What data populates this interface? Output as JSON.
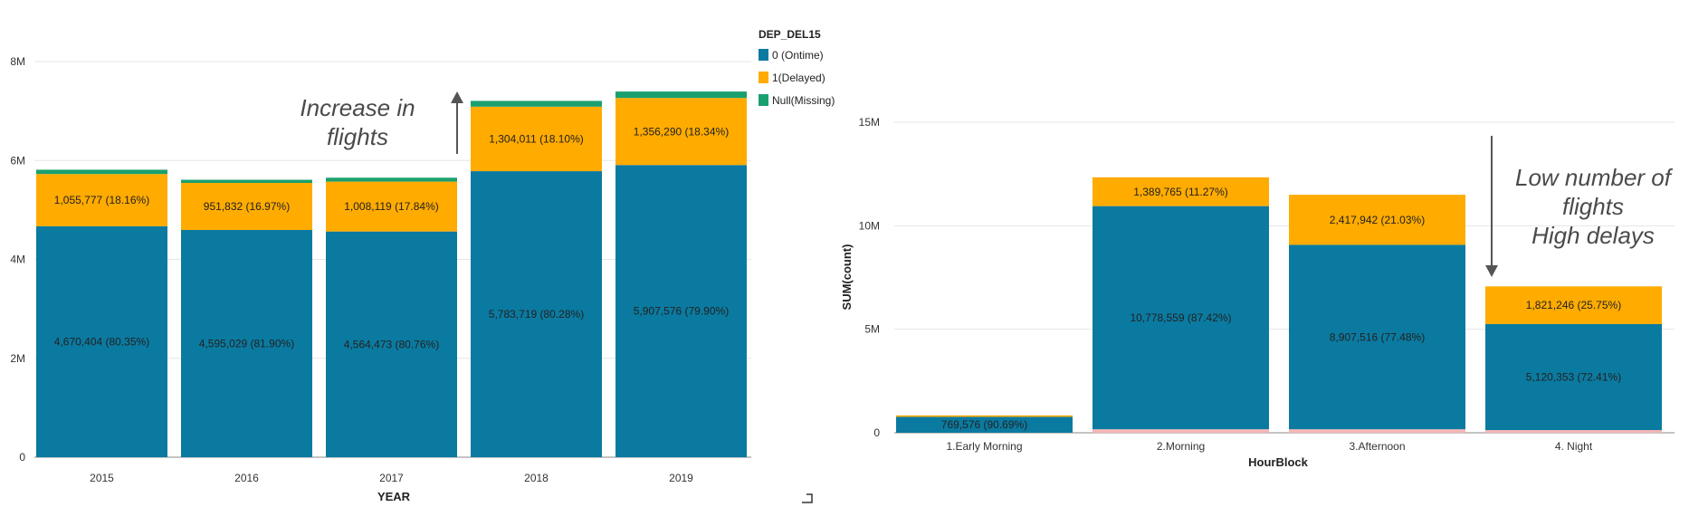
{
  "chart_data": [
    {
      "type": "bar",
      "stacked": true,
      "xlabel": "YEAR",
      "ylabel": "",
      "ylim": [
        0,
        8000000
      ],
      "yticks": [
        "0",
        "2M",
        "4M",
        "6M",
        "8M"
      ],
      "ytick_values": [
        0,
        2000000,
        4000000,
        6000000,
        8000000
      ],
      "grid": true,
      "legend_title": "DEP_DEL15",
      "legend_position": "top-right",
      "categories": [
        "2015",
        "2016",
        "2017",
        "2018",
        "2019"
      ],
      "series": [
        {
          "name": "0 (Ontime)",
          "color": "#0b7aa0",
          "values": [
            4670404,
            4595029,
            4564473,
            5783719,
            5907576
          ],
          "labels": [
            "4,670,404 (80.35%)",
            "4,595,029 (81.90%)",
            "4,564,473 (80.76%)",
            "5,783,719 (80.28%)",
            "5,907,576 (79.90%)"
          ]
        },
        {
          "name": "1(Delayed)",
          "color": "#ffab00",
          "values": [
            1055777,
            951832,
            1008119,
            1304011,
            1356290
          ],
          "labels": [
            "1,055,777 (18.16%)",
            "951,832 (16.97%)",
            "1,008,119 (17.84%)",
            "1,304,011 (18.10%)",
            "1,356,290 (18.34%)"
          ]
        },
        {
          "name": "Null(Missing)",
          "color": "#1aa06e",
          "values": [
            87000,
            63000,
            79000,
            117000,
            130000
          ],
          "labels": [
            "",
            "",
            "",
            "",
            ""
          ]
        }
      ],
      "annotation": [
        "Increase in",
        "flights"
      ]
    },
    {
      "type": "bar",
      "stacked": true,
      "xlabel": "HourBlock",
      "ylabel": "SUM(count)",
      "ylim": [
        0,
        17500000
      ],
      "yticks": [
        "0",
        "5M",
        "10M",
        "15M"
      ],
      "ytick_values": [
        0,
        5000000,
        10000000,
        15000000
      ],
      "grid": true,
      "categories": [
        "1.Early Morning",
        "2.Morning",
        "3.Afternoon",
        "4. Night"
      ],
      "series": [
        {
          "name": "Null",
          "color": "#f4b6b6",
          "values": [
            0,
            170000,
            170000,
            130000
          ],
          "labels": [
            "",
            "",
            "",
            ""
          ]
        },
        {
          "name": "Ontime",
          "color": "#0b7aa0",
          "values": [
            769576,
            10778559,
            8907516,
            5120353
          ],
          "labels": [
            "769,576 (90.69%)",
            "10,778,559 (87.42%)",
            "8,907,516 (77.48%)",
            "5,120,353 (72.41%)"
          ]
        },
        {
          "name": "Delayed",
          "color": "#ffab00",
          "values": [
            70000,
            1389765,
            2417942,
            1821246
          ],
          "labels": [
            "",
            "1,389,765 (11.27%)",
            "2,417,942 (21.03%)",
            "1,821,246 (25.75%)"
          ]
        }
      ],
      "annotation": [
        "Low number of",
        "flights",
        "High delays"
      ]
    }
  ]
}
